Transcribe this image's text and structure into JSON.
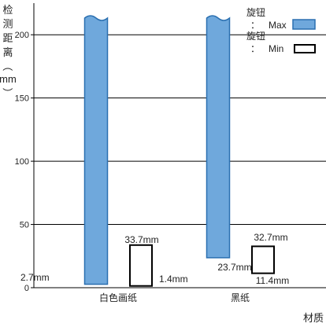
{
  "chart_data": {
    "type": "bar",
    "ylabel": "检测距离（mm）",
    "xlabel": "材质",
    "ylim": [
      0,
      225
    ],
    "yticks": [
      0,
      50,
      100,
      150,
      200
    ],
    "categories": [
      "白色画纸",
      "黑纸"
    ],
    "series": [
      {
        "name": "旋钮：Max",
        "color": "#6fa8dc",
        "style": "filled",
        "low": [
          2.7,
          23.7
        ],
        "high": [
          220,
          220
        ],
        "low_labels": [
          "2.7mm",
          "23.7mm"
        ],
        "broken_top": true
      },
      {
        "name": "旋钮：Min",
        "color": "#000000",
        "style": "outline",
        "low": [
          1.4,
          11.4
        ],
        "high": [
          33.7,
          32.7
        ],
        "low_labels": [
          "1.4mm",
          "11.4mm"
        ],
        "high_labels": [
          "33.7mm",
          "32.7mm"
        ]
      }
    ],
    "legend": [
      {
        "title": "旋钮",
        "sep": "：",
        "value": "Max"
      },
      {
        "title": "旋钮",
        "sep": "：",
        "value": "Min"
      }
    ],
    "legend_position": "top-right",
    "grid": true
  }
}
